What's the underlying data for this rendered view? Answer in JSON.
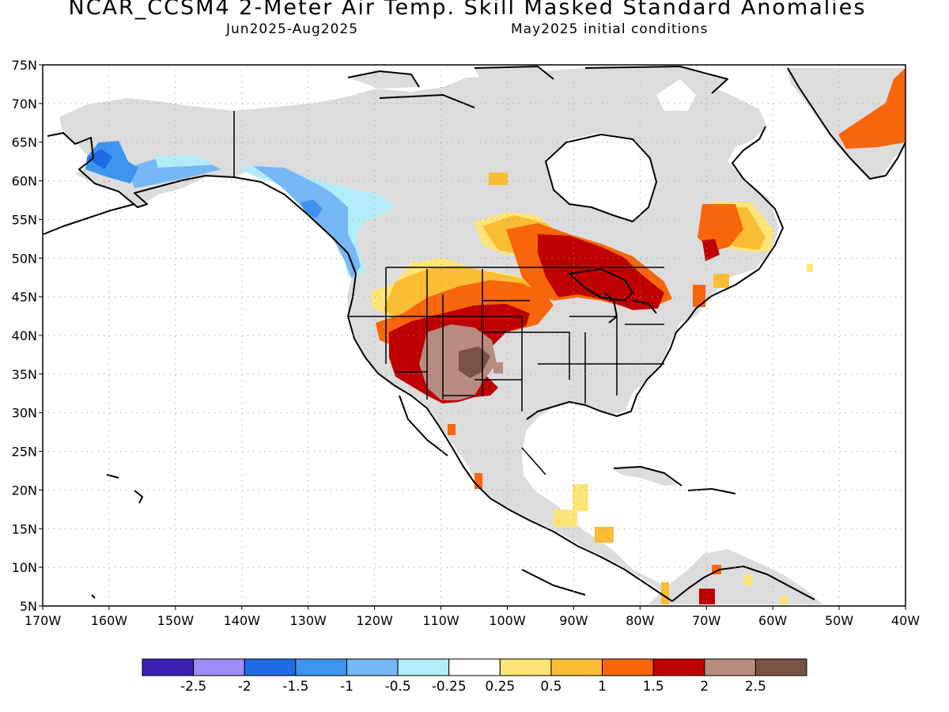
{
  "title": "NCAR_CCSM4 2-Meter Air Temp. Skill Masked Standard Anomalies",
  "period": "Jun2025-Aug2025",
  "init": "May2025 initial conditions",
  "lat_labels": [
    "75N",
    "70N",
    "65N",
    "60N",
    "55N",
    "50N",
    "45N",
    "40N",
    "35N",
    "30N",
    "25N",
    "20N",
    "15N",
    "10N",
    "5N"
  ],
  "lon_labels": [
    "170W",
    "160W",
    "150W",
    "140W",
    "130W",
    "120W",
    "110W",
    "100W",
    "90W",
    "80W",
    "70W",
    "60W",
    "50W",
    "40W"
  ],
  "colorbar": {
    "colors": [
      "#3c1fb3",
      "#a08cf6",
      "#1f6be3",
      "#3d94f0",
      "#76b7f5",
      "#b2ecf8",
      "#ffffff",
      "#fde577",
      "#fbbd33",
      "#f8650b",
      "#bf0000",
      "#b88b80",
      "#7c5145"
    ],
    "labels": [
      "-2.5",
      "-2",
      "-1.5",
      "-1",
      "-0.5",
      "-0.25",
      "0.25",
      "0.5",
      "1",
      "1.5",
      "2",
      "2.5"
    ]
  },
  "map_colors": {
    "land_masked": "#dcdcdc",
    "coast": "#000000"
  }
}
